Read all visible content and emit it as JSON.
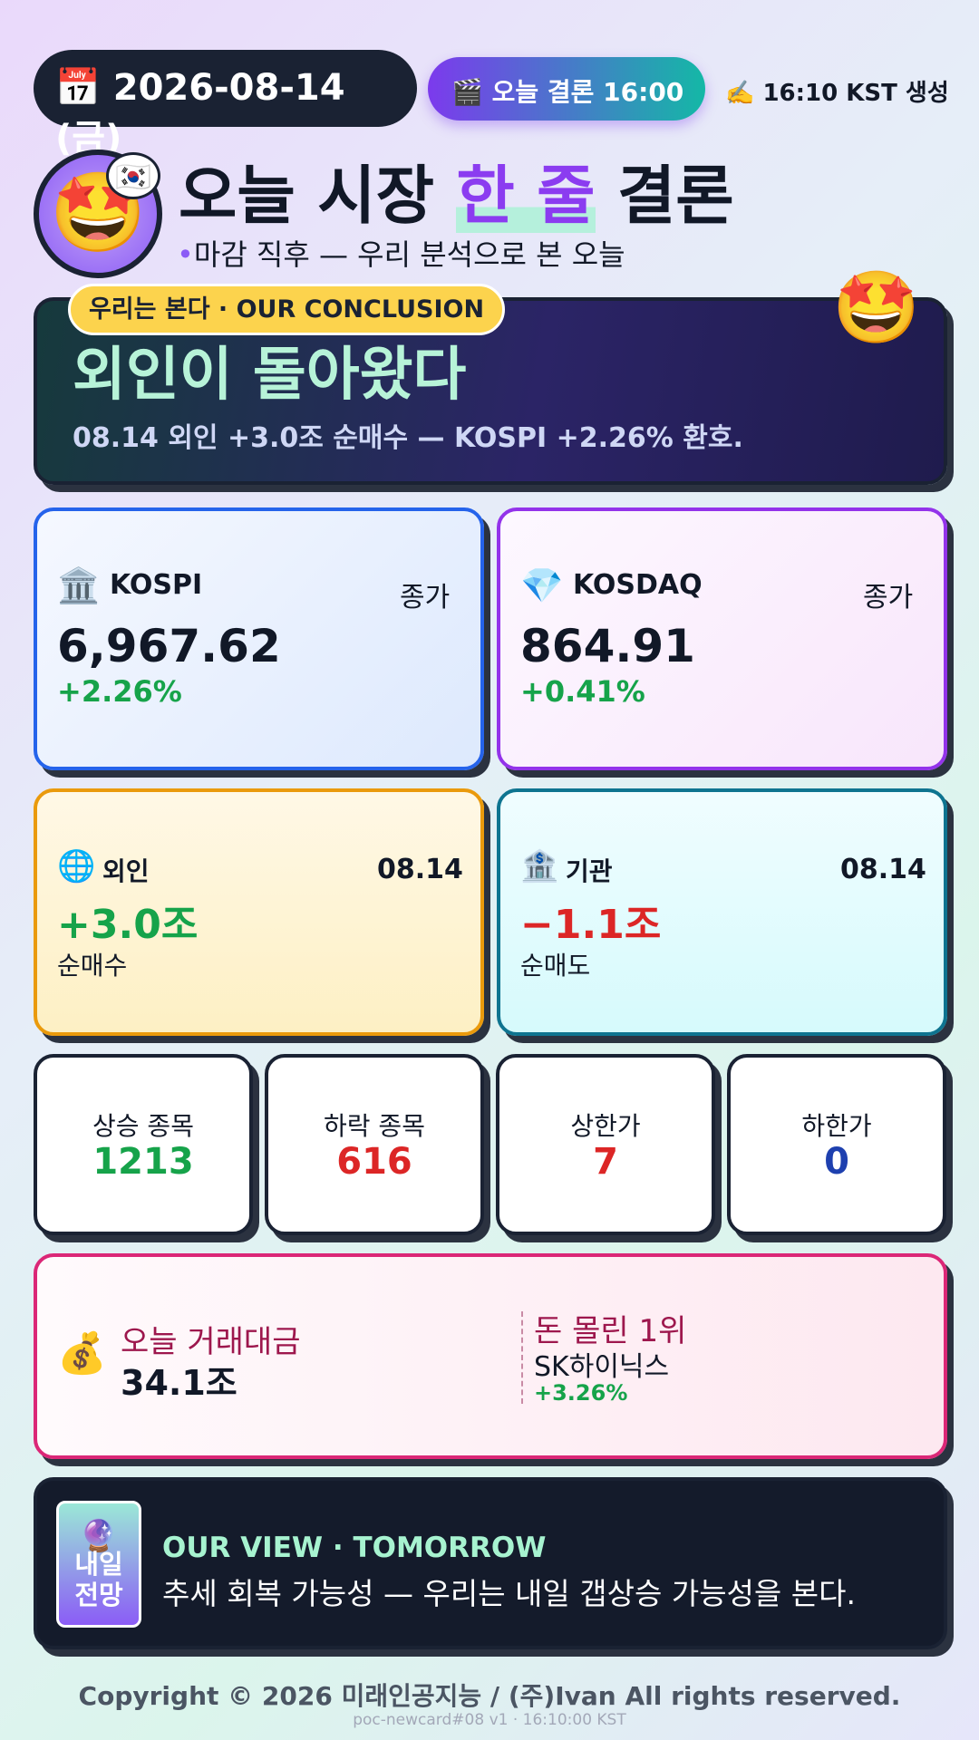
{
  "header": {
    "date": "2026-08-14 (금)",
    "verdict_time": "오늘 결론 16:00",
    "generated": "16:10 KST 생성"
  },
  "title": {
    "before": "오늘 시장",
    "highlight": "한 줄",
    "after": "결론",
    "subtitle": "마감 직후 — 우리 분석으로 본 오늘"
  },
  "conclusion": {
    "badge": "우리는 본다 · OUR CONCLUSION",
    "headline": "외인이 돌아왔다",
    "summary": "08.14 외인 +3.0조 순매수 — KOSPI +2.26% 환호."
  },
  "indices": [
    {
      "name": "KOSPI",
      "tag": "종가",
      "value": "6,967.62",
      "change": "+2.26%"
    },
    {
      "name": "KOSDAQ",
      "tag": "종가",
      "value": "864.91",
      "change": "+0.41%"
    }
  ],
  "flows": [
    {
      "name": "외인",
      "date": "08.14",
      "value": "+3.0조",
      "note": "순매수"
    },
    {
      "name": "기관",
      "date": "08.14",
      "value": "−1.1조",
      "note": "순매도"
    }
  ],
  "breadth": [
    {
      "label": "상승 종목",
      "value": "1213"
    },
    {
      "label": "하락 종목",
      "value": "616"
    },
    {
      "label": "상한가",
      "value": "7"
    },
    {
      "label": "하한가",
      "value": "0"
    }
  ],
  "turnover": {
    "label": "오늘 거래대금",
    "value": "34.1조",
    "top_label": "돈 몰린 1위",
    "top_name": "SK하이닉스",
    "top_change": "+3.26%"
  },
  "outlook": {
    "badge_line1": "내일",
    "badge_line2": "전망",
    "label": "OUR VIEW · TOMORROW",
    "text": "추세 회복 가능성 — 우리는 내일 갭상승 가능성을 본다."
  },
  "footer": {
    "copyright": "Copyright © 2026 미래인공지능 / (주)Ivan All rights reserved.",
    "build": "poc-newcard#08 v1 · 16:10:00 KST"
  }
}
